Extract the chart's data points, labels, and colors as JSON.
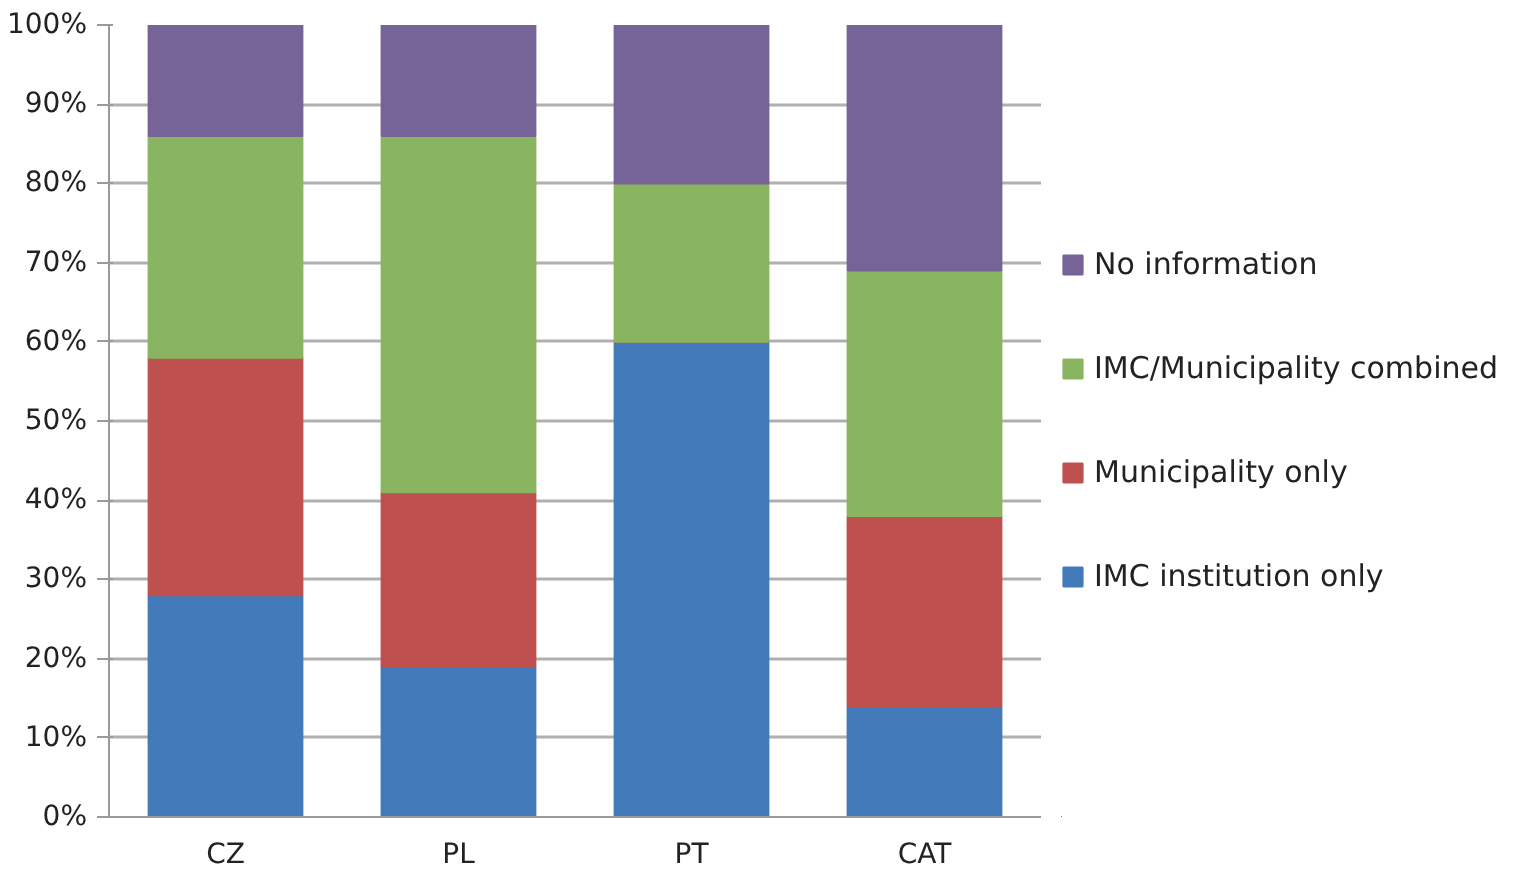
{
  "chart_data": {
    "type": "bar",
    "stacked": true,
    "categories": [
      "CZ",
      "PL",
      "PT",
      "CAT"
    ],
    "series": [
      {
        "name": "IMC institution only",
        "color": "#437ab9",
        "values": [
          28,
          19,
          60,
          14
        ]
      },
      {
        "name": "Municipality only",
        "color": "#be504f",
        "values": [
          30,
          22,
          0,
          24
        ]
      },
      {
        "name": "IMC/Municipality combined",
        "color": "#8ab560",
        "values": [
          28,
          45,
          20,
          31
        ]
      },
      {
        "name": "No information",
        "color": "#766397",
        "values": [
          14,
          14,
          20,
          31
        ]
      }
    ],
    "ylim": [
      0,
      100
    ],
    "yticks": [
      {
        "value": 0,
        "label": "0%"
      },
      {
        "value": 10,
        "label": "10%"
      },
      {
        "value": 20,
        "label": "20%"
      },
      {
        "value": 30,
        "label": "30%"
      },
      {
        "value": 40,
        "label": "40%"
      },
      {
        "value": 50,
        "label": "50%"
      },
      {
        "value": 60,
        "label": "60%"
      },
      {
        "value": 70,
        "label": "70%"
      },
      {
        "value": 80,
        "label": "80%"
      },
      {
        "value": 90,
        "label": "90%"
      },
      {
        "value": 100,
        "label": "100%"
      }
    ],
    "grid": "y",
    "legend": "right"
  }
}
